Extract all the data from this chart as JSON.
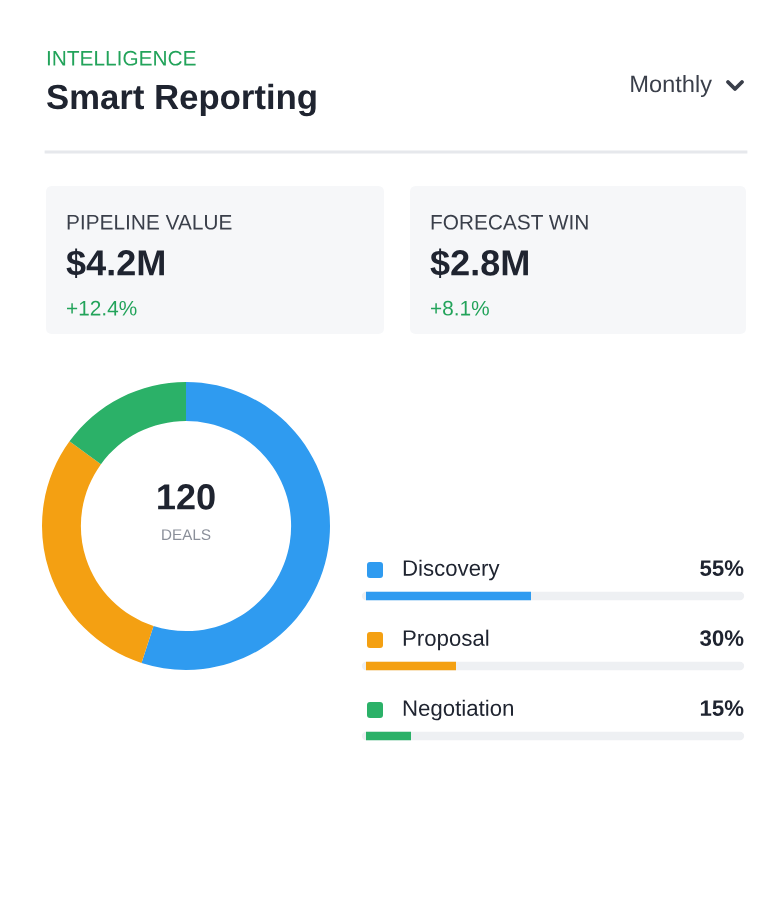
{
  "chart_data": {
    "type": "donut",
    "subtitle": "INTELLIGENCE",
    "title": "Smart Reporting",
    "categories": [
      "Discovery",
      "Proposal",
      "Negotiation"
    ],
    "values": [
      55,
      30,
      15
    ],
    "colors": [
      "#2f9bf0",
      "#f4a012",
      "#2bb168"
    ],
    "value_labels": [
      "55%",
      "30%",
      "15%"
    ],
    "legend": "right",
    "annotations": [
      "Monthly",
      "PIPELINE VALUE",
      "$4.2M",
      "+12.4%",
      "FORECAST WIN",
      "$2.8M",
      "+8.1%",
      "120",
      "DEALS"
    ]
  }
}
